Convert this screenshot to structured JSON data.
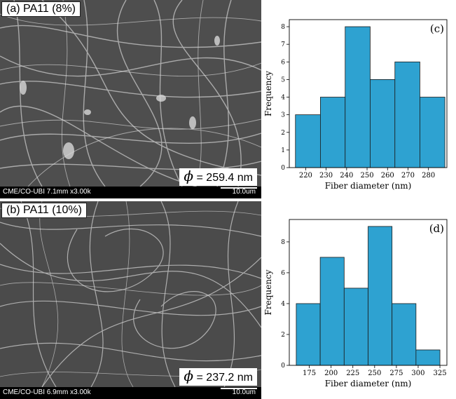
{
  "panels": {
    "a": {
      "label": "(a) PA11 (8%)",
      "phi_symbol": "ϕ",
      "phi_value": "= 259.4 nm",
      "sem_info": "CME/CO-UBI 7.1mm x3.00k",
      "scale": "10.0um"
    },
    "b": {
      "label": "(b) PA11 (10%)",
      "phi_symbol": "ϕ",
      "phi_value": "= 237.2 nm",
      "sem_info": "CME/CO-UBI 6.9mm x3.00k",
      "scale": "10.0um"
    }
  },
  "colors": {
    "bar_fill": "#2ea2d1",
    "bar_stroke": "#1a1a1a",
    "sem_bg": "#5a5a5a"
  },
  "chart_data": [
    {
      "type": "bar",
      "panel_label": "(c)",
      "bin_edges": [
        215,
        227.2,
        239.3,
        251.5,
        263.6,
        275.8,
        288
      ],
      "values": [
        3,
        4,
        8,
        5,
        6,
        4
      ],
      "xticks": [
        220,
        230,
        240,
        250,
        260,
        270,
        280
      ],
      "yticks": [
        0,
        1,
        2,
        3,
        4,
        5,
        6,
        7,
        8
      ],
      "xlabel": "Fiber diameter (nm)",
      "ylabel": "Frequency",
      "xlim": [
        212,
        289
      ],
      "ylim": [
        0,
        8.4
      ]
    },
    {
      "type": "bar",
      "panel_label": "(d)",
      "bin_edges": [
        160,
        187.5,
        215,
        242.5,
        270,
        297.5,
        325
      ],
      "values": [
        4,
        7,
        5,
        9,
        4,
        1
      ],
      "xticks": [
        175,
        200,
        225,
        250,
        275,
        300,
        325
      ],
      "yticks": [
        0,
        2,
        4,
        6,
        8
      ],
      "xlabel": "Fiber diameter (nm)",
      "ylabel": "Frequency",
      "xlim": [
        152,
        333
      ],
      "ylim": [
        0,
        9.45
      ]
    }
  ]
}
